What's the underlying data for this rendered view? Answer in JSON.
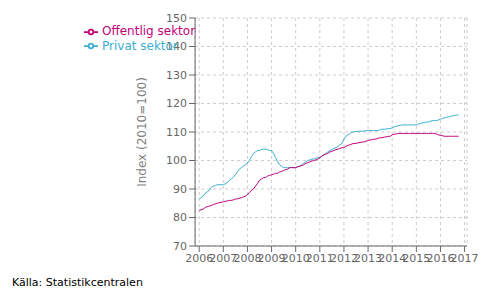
{
  "chart_data": {
    "type": "line",
    "ylabel": "Index (2010=100)",
    "annotation": "Källa: Statistikcentralen",
    "x": [
      2006.0,
      2006.08,
      2006.17,
      2006.25,
      2006.33,
      2006.42,
      2006.5,
      2006.58,
      2006.67,
      2006.75,
      2006.83,
      2006.92,
      2007.0,
      2007.08,
      2007.17,
      2007.25,
      2007.33,
      2007.42,
      2007.5,
      2007.58,
      2007.67,
      2007.75,
      2007.83,
      2007.92,
      2008.0,
      2008.08,
      2008.17,
      2008.25,
      2008.33,
      2008.42,
      2008.5,
      2008.58,
      2008.67,
      2008.75,
      2008.83,
      2008.92,
      2009.0,
      2009.08,
      2009.17,
      2009.25,
      2009.33,
      2009.42,
      2009.5,
      2009.58,
      2009.67,
      2009.75,
      2009.83,
      2009.92,
      2010.0,
      2010.08,
      2010.17,
      2010.25,
      2010.33,
      2010.42,
      2010.5,
      2010.58,
      2010.67,
      2010.75,
      2010.83,
      2010.92,
      2011.0,
      2011.08,
      2011.17,
      2011.25,
      2011.33,
      2011.42,
      2011.5,
      2011.58,
      2011.67,
      2011.75,
      2011.83,
      2011.92,
      2012.0,
      2012.08,
      2012.17,
      2012.25,
      2012.33,
      2012.42,
      2012.5,
      2012.58,
      2012.67,
      2012.75,
      2012.83,
      2012.92,
      2013.0,
      2013.08,
      2013.17,
      2013.25,
      2013.33,
      2013.42,
      2013.5,
      2013.58,
      2013.67,
      2013.75,
      2013.83,
      2013.92,
      2014.0,
      2014.08,
      2014.17,
      2014.25,
      2014.33,
      2014.42,
      2014.5,
      2014.58,
      2014.67,
      2014.75,
      2014.83,
      2014.92,
      2015.0,
      2015.08,
      2015.17,
      2015.25,
      2015.33,
      2015.42,
      2015.5,
      2015.58,
      2015.67,
      2015.75,
      2015.83,
      2015.92,
      2016.0,
      2016.08,
      2016.17,
      2016.25,
      2016.33,
      2016.42,
      2016.5,
      2016.58,
      2016.67,
      2016.75
    ],
    "series": [
      {
        "name": "Privat sektor",
        "color": "#3BAED0",
        "values": [
          86.5,
          87.0,
          87.5,
          88.5,
          89.0,
          89.5,
          90.5,
          91.0,
          91.2,
          91.5,
          91.5,
          91.5,
          91.5,
          91.8,
          92.2,
          93.0,
          93.5,
          94.2,
          95.0,
          96.0,
          97.0,
          97.5,
          98.0,
          98.5,
          99.0,
          100.0,
          101.5,
          102.5,
          103.0,
          103.5,
          103.5,
          103.8,
          104.0,
          104.0,
          103.8,
          103.5,
          103.5,
          102.5,
          101.0,
          99.5,
          98.5,
          98.0,
          97.5,
          97.5,
          97.5,
          97.5,
          97.5,
          97.5,
          97.5,
          97.8,
          98.0,
          98.5,
          99.0,
          99.5,
          100.0,
          100.2,
          100.5,
          100.5,
          100.8,
          101.0,
          101.0,
          101.5,
          102.0,
          102.5,
          103.0,
          103.5,
          103.8,
          104.2,
          104.5,
          105.0,
          105.5,
          106.0,
          107.5,
          108.5,
          109.0,
          109.5,
          110.0,
          110.0,
          110.2,
          110.2,
          110.3,
          110.3,
          110.3,
          110.5,
          110.5,
          110.5,
          110.5,
          110.5,
          110.5,
          110.5,
          110.8,
          111.0,
          111.0,
          111.0,
          111.2,
          111.2,
          111.5,
          111.8,
          112.0,
          112.2,
          112.3,
          112.5,
          112.5,
          112.5,
          112.5,
          112.5,
          112.5,
          112.5,
          112.5,
          112.8,
          113.0,
          113.2,
          113.3,
          113.5,
          113.5,
          113.8,
          114.0,
          114.0,
          114.0,
          114.2,
          114.5,
          114.8,
          115.0,
          115.2,
          115.3,
          115.5,
          115.7,
          115.8,
          115.9,
          116.0
        ]
      },
      {
        "name": "Offentlig sektor",
        "color": "#C2007A",
        "values": [
          82.5,
          82.7,
          83.0,
          83.5,
          83.8,
          84.0,
          84.2,
          84.5,
          84.8,
          85.0,
          85.2,
          85.3,
          85.5,
          85.7,
          85.8,
          86.0,
          86.0,
          86.2,
          86.5,
          86.5,
          86.8,
          87.0,
          87.2,
          87.5,
          88.0,
          88.8,
          89.5,
          90.0,
          91.0,
          92.0,
          93.0,
          93.5,
          94.0,
          94.0,
          94.5,
          94.8,
          95.0,
          95.2,
          95.5,
          95.5,
          96.0,
          96.2,
          96.5,
          96.8,
          97.0,
          97.5,
          97.5,
          97.5,
          97.5,
          97.8,
          98.0,
          98.2,
          98.5,
          99.0,
          99.2,
          99.5,
          99.8,
          100.0,
          100.2,
          100.5,
          101.0,
          101.5,
          102.0,
          102.2,
          102.5,
          103.0,
          103.2,
          103.5,
          103.8,
          104.0,
          104.2,
          104.5,
          104.5,
          105.0,
          105.3,
          105.5,
          105.8,
          106.0,
          106.0,
          106.2,
          106.3,
          106.5,
          106.5,
          106.8,
          107.0,
          107.2,
          107.3,
          107.5,
          107.5,
          107.8,
          108.0,
          108.0,
          108.2,
          108.3,
          108.5,
          108.5,
          109.0,
          109.2,
          109.3,
          109.5,
          109.5,
          109.5,
          109.5,
          109.5,
          109.5,
          109.5,
          109.5,
          109.5,
          109.5,
          109.5,
          109.5,
          109.5,
          109.5,
          109.5,
          109.5,
          109.5,
          109.5,
          109.5,
          109.3,
          109.0,
          108.8,
          108.7,
          108.5,
          108.5,
          108.5,
          108.5,
          108.5,
          108.5,
          108.5,
          108.5
        ]
      }
    ],
    "xlim": [
      2005.83,
      2017.1
    ],
    "xticks": [
      2006,
      2007,
      2008,
      2009,
      2010,
      2011,
      2012,
      2013,
      2014,
      2015,
      2016,
      2017
    ],
    "ylim": [
      70,
      150
    ],
    "yticks": [
      70,
      80,
      90,
      100,
      110,
      120,
      130,
      140,
      150
    ],
    "grid": true,
    "legend": "upper left"
  }
}
